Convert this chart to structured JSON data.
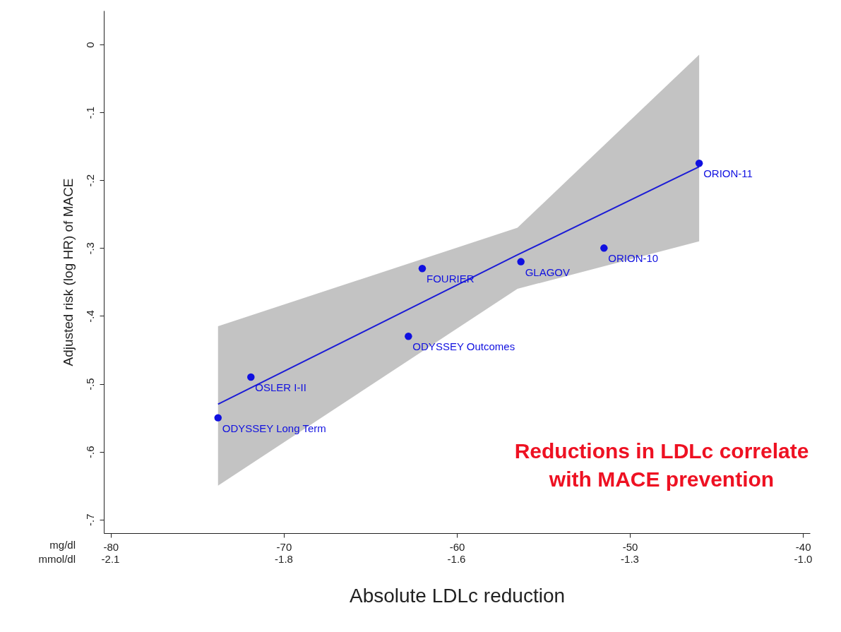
{
  "chart_data": {
    "type": "scatter",
    "xlabel": "Absolute LDLc reduction",
    "ylabel": "Adjusted risk (log HR) of MACE",
    "xlim": [
      -80.4,
      -39.6
    ],
    "xticks": [
      -80,
      -70,
      -60,
      -50,
      -40
    ],
    "x2lim": [
      -2.079,
      -1.024
    ],
    "x2ticks": [
      {
        "value": -2.069,
        "label": "-2.1"
      },
      {
        "value": -1.81,
        "label": "-1.8"
      },
      {
        "value": -1.552,
        "label": "-1.6"
      },
      {
        "value": -1.293,
        "label": "-1.3"
      },
      {
        "value": -1.034,
        "label": "-1.0"
      }
    ],
    "ylim": [
      -0.72,
      0.05
    ],
    "yticks": [
      {
        "value": 0,
        "label": "0"
      },
      {
        "value": -0.1,
        "label": "-.1"
      },
      {
        "value": -0.2,
        "label": "-.2"
      },
      {
        "value": -0.3,
        "label": "-.3"
      },
      {
        "value": -0.4,
        "label": "-.4"
      },
      {
        "value": -0.5,
        "label": "-.5"
      },
      {
        "value": -0.6,
        "label": "-.6"
      },
      {
        "value": -0.7,
        "label": "-.7"
      }
    ],
    "grid": false,
    "marker": "circle",
    "series": [
      {
        "type": "line",
        "marker": "none",
        "color": "#1c1cd6",
        "x": [
          -73.8,
          -56.5,
          -46.0
        ],
        "values": [
          -0.53,
          -0.31,
          -0.18
        ],
        "lower": [
          -0.65,
          -0.36,
          -0.29
        ],
        "upper": [
          -0.415,
          -0.27,
          -0.015
        ]
      },
      {
        "color": "#1010e0",
        "x": [
          -73.8,
          -71.9,
          -62.8,
          -62.0,
          -56.3,
          -51.5,
          -46.0
        ],
        "values": [
          -0.55,
          -0.49,
          -0.43,
          -0.33,
          -0.32,
          -0.3,
          -0.175
        ]
      }
    ],
    "annotations": [
      "mg/dl",
      "mmol/dl",
      "Reductions in LDLc correlate\nwith MACE prevention",
      {
        "text": "ODYSSEY Long Term",
        "x": -73.8,
        "y": -0.55
      },
      {
        "text": "OSLER I-II",
        "x": -71.9,
        "y": -0.49
      },
      {
        "text": "ODYSSEY Outcomes",
        "x": -62.8,
        "y": -0.43
      },
      {
        "text": "FOURIER",
        "x": -62.0,
        "y": -0.33
      },
      {
        "text": "GLAGOV",
        "x": -56.3,
        "y": -0.32
      },
      {
        "text": "ORION-10",
        "x": -51.5,
        "y": -0.3
      },
      {
        "text": "ORION-11",
        "x": -46.0,
        "y": -0.175
      }
    ]
  }
}
